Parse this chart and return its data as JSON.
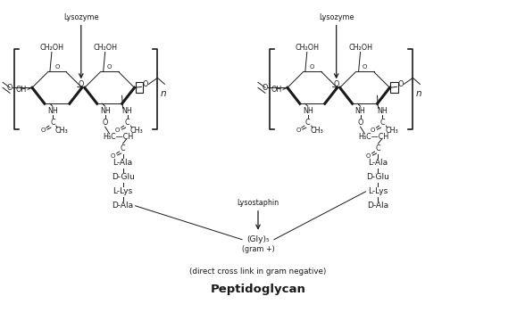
{
  "title": "Peptidoglycan",
  "subtitle": "(direct cross link in gram negative)",
  "lysozyme_label": "Lysozyme",
  "lysostaphin_label": "Lysostaphin",
  "gram_plus_label": "(gram +)",
  "ch2oh": "CH₂OH",
  "oh": "OH",
  "nh": "NH",
  "h3c_ch": "H₃C—CH",
  "l_ala": "L-Ala",
  "d_glu": "D-Glu",
  "l_lys": "L-Lys",
  "d_ala": "D-Ala",
  "n_label": "n",
  "bg_color": "#ffffff",
  "fg_color": "#1a1a1a",
  "fig_width": 5.79,
  "fig_height": 3.6,
  "dpi": 100
}
